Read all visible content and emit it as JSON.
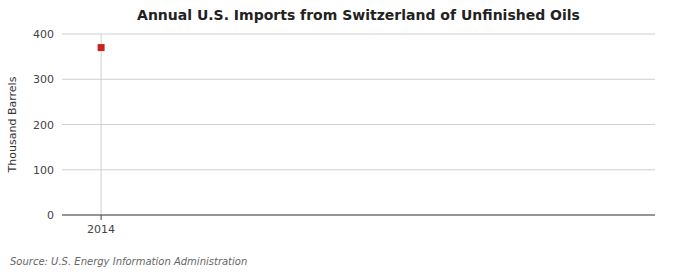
{
  "chart_data": {
    "type": "scatter",
    "title": "Annual U.S. Imports from Switzerland of Unfinished Oils",
    "ylabel": "Thousand Barrels",
    "annotations": [
      "Source: U.S. Energy Information Administration"
    ],
    "x": [
      2014
    ],
    "values": [
      370
    ],
    "color": "#cc2222",
    "marker": "square",
    "xlim": [
      2013.4,
      2022.5
    ],
    "ylim": [
      0,
      400
    ],
    "xticks": [
      2014
    ],
    "yticks": [
      0,
      100,
      200,
      300,
      400
    ],
    "grid": true
  }
}
